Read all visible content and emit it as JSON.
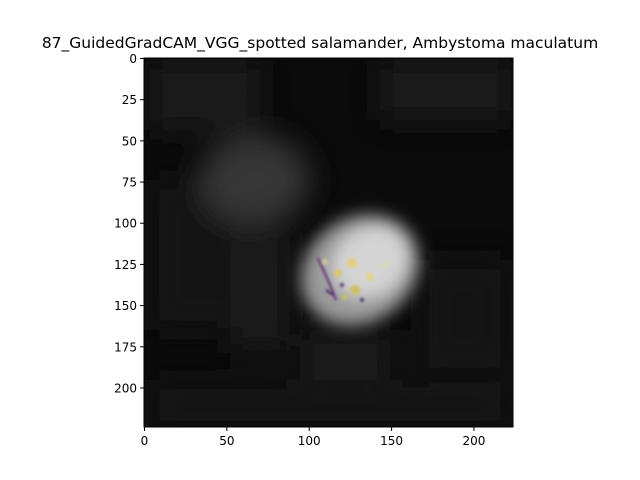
{
  "figure": {
    "title": "87_GuidedGradCAM_VGG_spotted salamander, Ambystoma maculatum"
  },
  "image_axes": {
    "x_ticks": [
      0,
      50,
      100,
      150,
      200
    ],
    "y_ticks": [
      0,
      25,
      50,
      75,
      100,
      125,
      150,
      175,
      200
    ],
    "x_extent": [
      0,
      224
    ],
    "y_extent": [
      0,
      224
    ],
    "y_inverted": true
  },
  "heatmap": {
    "description_colors": {
      "background": "#0a0a0a",
      "highlight": "#d8d8d8",
      "spot_yellow": "#e0d080",
      "spot_purple": "#5a3a6e"
    }
  }
}
